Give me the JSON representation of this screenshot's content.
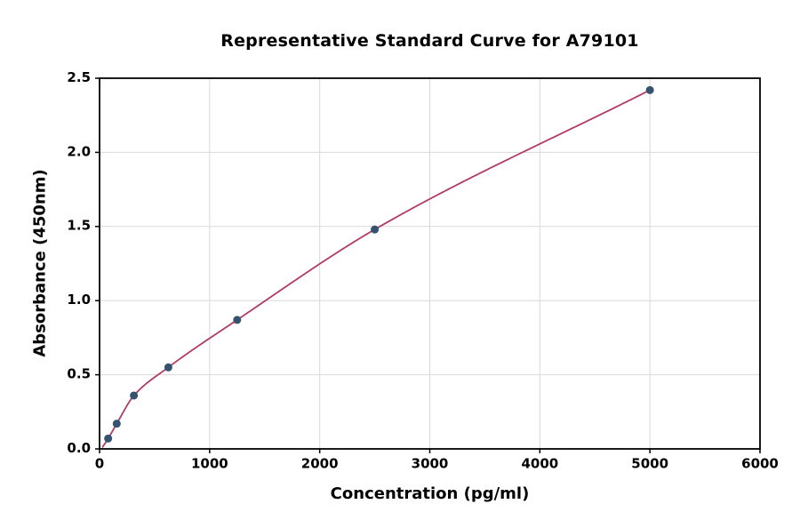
{
  "chart_data": {
    "type": "scatter",
    "title": "Representative Standard Curve for A79101",
    "xlabel": "Concentration (pg/ml)",
    "ylabel": "Absorbance (450nm)",
    "xlim": [
      0,
      6000
    ],
    "ylim": [
      0,
      2.5
    ],
    "x_ticks": [
      0,
      1000,
      2000,
      3000,
      4000,
      5000,
      6000
    ],
    "y_ticks": [
      0,
      0.5,
      1.0,
      1.5,
      2.0,
      2.5
    ],
    "grid": true,
    "legend_position": "none",
    "points": [
      [
        78,
        0.07
      ],
      [
        156,
        0.17
      ],
      [
        312,
        0.36
      ],
      [
        625,
        0.55
      ],
      [
        1250,
        0.87
      ],
      [
        2500,
        1.48
      ],
      [
        5000,
        2.42
      ]
    ],
    "curve_anchor": [
      25,
      0.01
    ],
    "colors": {
      "point": "#33536e",
      "curve": "#b43a66",
      "grid": "#d9d9d9",
      "axis": "#000000",
      "text": "#000000",
      "background": "#ffffff"
    }
  }
}
